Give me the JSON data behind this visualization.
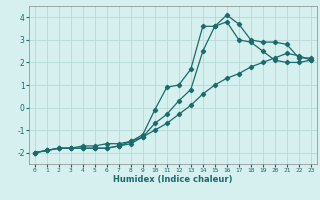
{
  "xlabel": "Humidex (Indice chaleur)",
  "ylabel": "",
  "background_color": "#d6efef",
  "grid_color": "#b8d8d8",
  "line_color": "#1a6b6b",
  "xlim": [
    -0.5,
    23.5
  ],
  "ylim": [
    -2.5,
    4.5
  ],
  "yticks": [
    -2,
    -1,
    0,
    1,
    2,
    3,
    4
  ],
  "xticks": [
    0,
    1,
    2,
    3,
    4,
    5,
    6,
    7,
    8,
    9,
    10,
    11,
    12,
    13,
    14,
    15,
    16,
    17,
    18,
    19,
    20,
    21,
    22,
    23
  ],
  "series1_x": [
    0,
    1,
    2,
    3,
    4,
    5,
    6,
    7,
    8,
    9,
    10,
    11,
    12,
    13,
    14,
    15,
    16,
    17,
    18,
    19,
    20,
    21,
    22,
    23
  ],
  "series1_y": [
    -2.0,
    -1.9,
    -1.8,
    -1.8,
    -1.8,
    -1.8,
    -1.8,
    -1.7,
    -1.5,
    -1.2,
    -0.1,
    0.9,
    1.0,
    1.7,
    3.6,
    3.6,
    4.1,
    3.7,
    3.0,
    2.9,
    2.9,
    2.8,
    2.2,
    2.2
  ],
  "series2_x": [
    0,
    1,
    2,
    3,
    4,
    5,
    6,
    7,
    8,
    9,
    10,
    11,
    12,
    13,
    14,
    15,
    16,
    17,
    18,
    19,
    20,
    21,
    22,
    23
  ],
  "series2_y": [
    -2.0,
    -1.9,
    -1.8,
    -1.8,
    -1.8,
    -1.8,
    -1.8,
    -1.7,
    -1.6,
    -1.3,
    -0.7,
    -0.3,
    0.3,
    0.8,
    2.5,
    3.6,
    3.8,
    3.0,
    2.9,
    2.5,
    2.1,
    2.0,
    2.0,
    2.1
  ],
  "series3_x": [
    0,
    1,
    2,
    3,
    4,
    5,
    6,
    7,
    8,
    9,
    10,
    11,
    12,
    13,
    14,
    15,
    16,
    17,
    18,
    19,
    20,
    21,
    22,
    23
  ],
  "series3_y": [
    -2.0,
    -1.9,
    -1.8,
    -1.8,
    -1.7,
    -1.7,
    -1.6,
    -1.6,
    -1.5,
    -1.3,
    -1.0,
    -0.7,
    -0.3,
    0.1,
    0.6,
    1.0,
    1.3,
    1.5,
    1.8,
    2.0,
    2.2,
    2.4,
    2.3,
    2.1
  ]
}
